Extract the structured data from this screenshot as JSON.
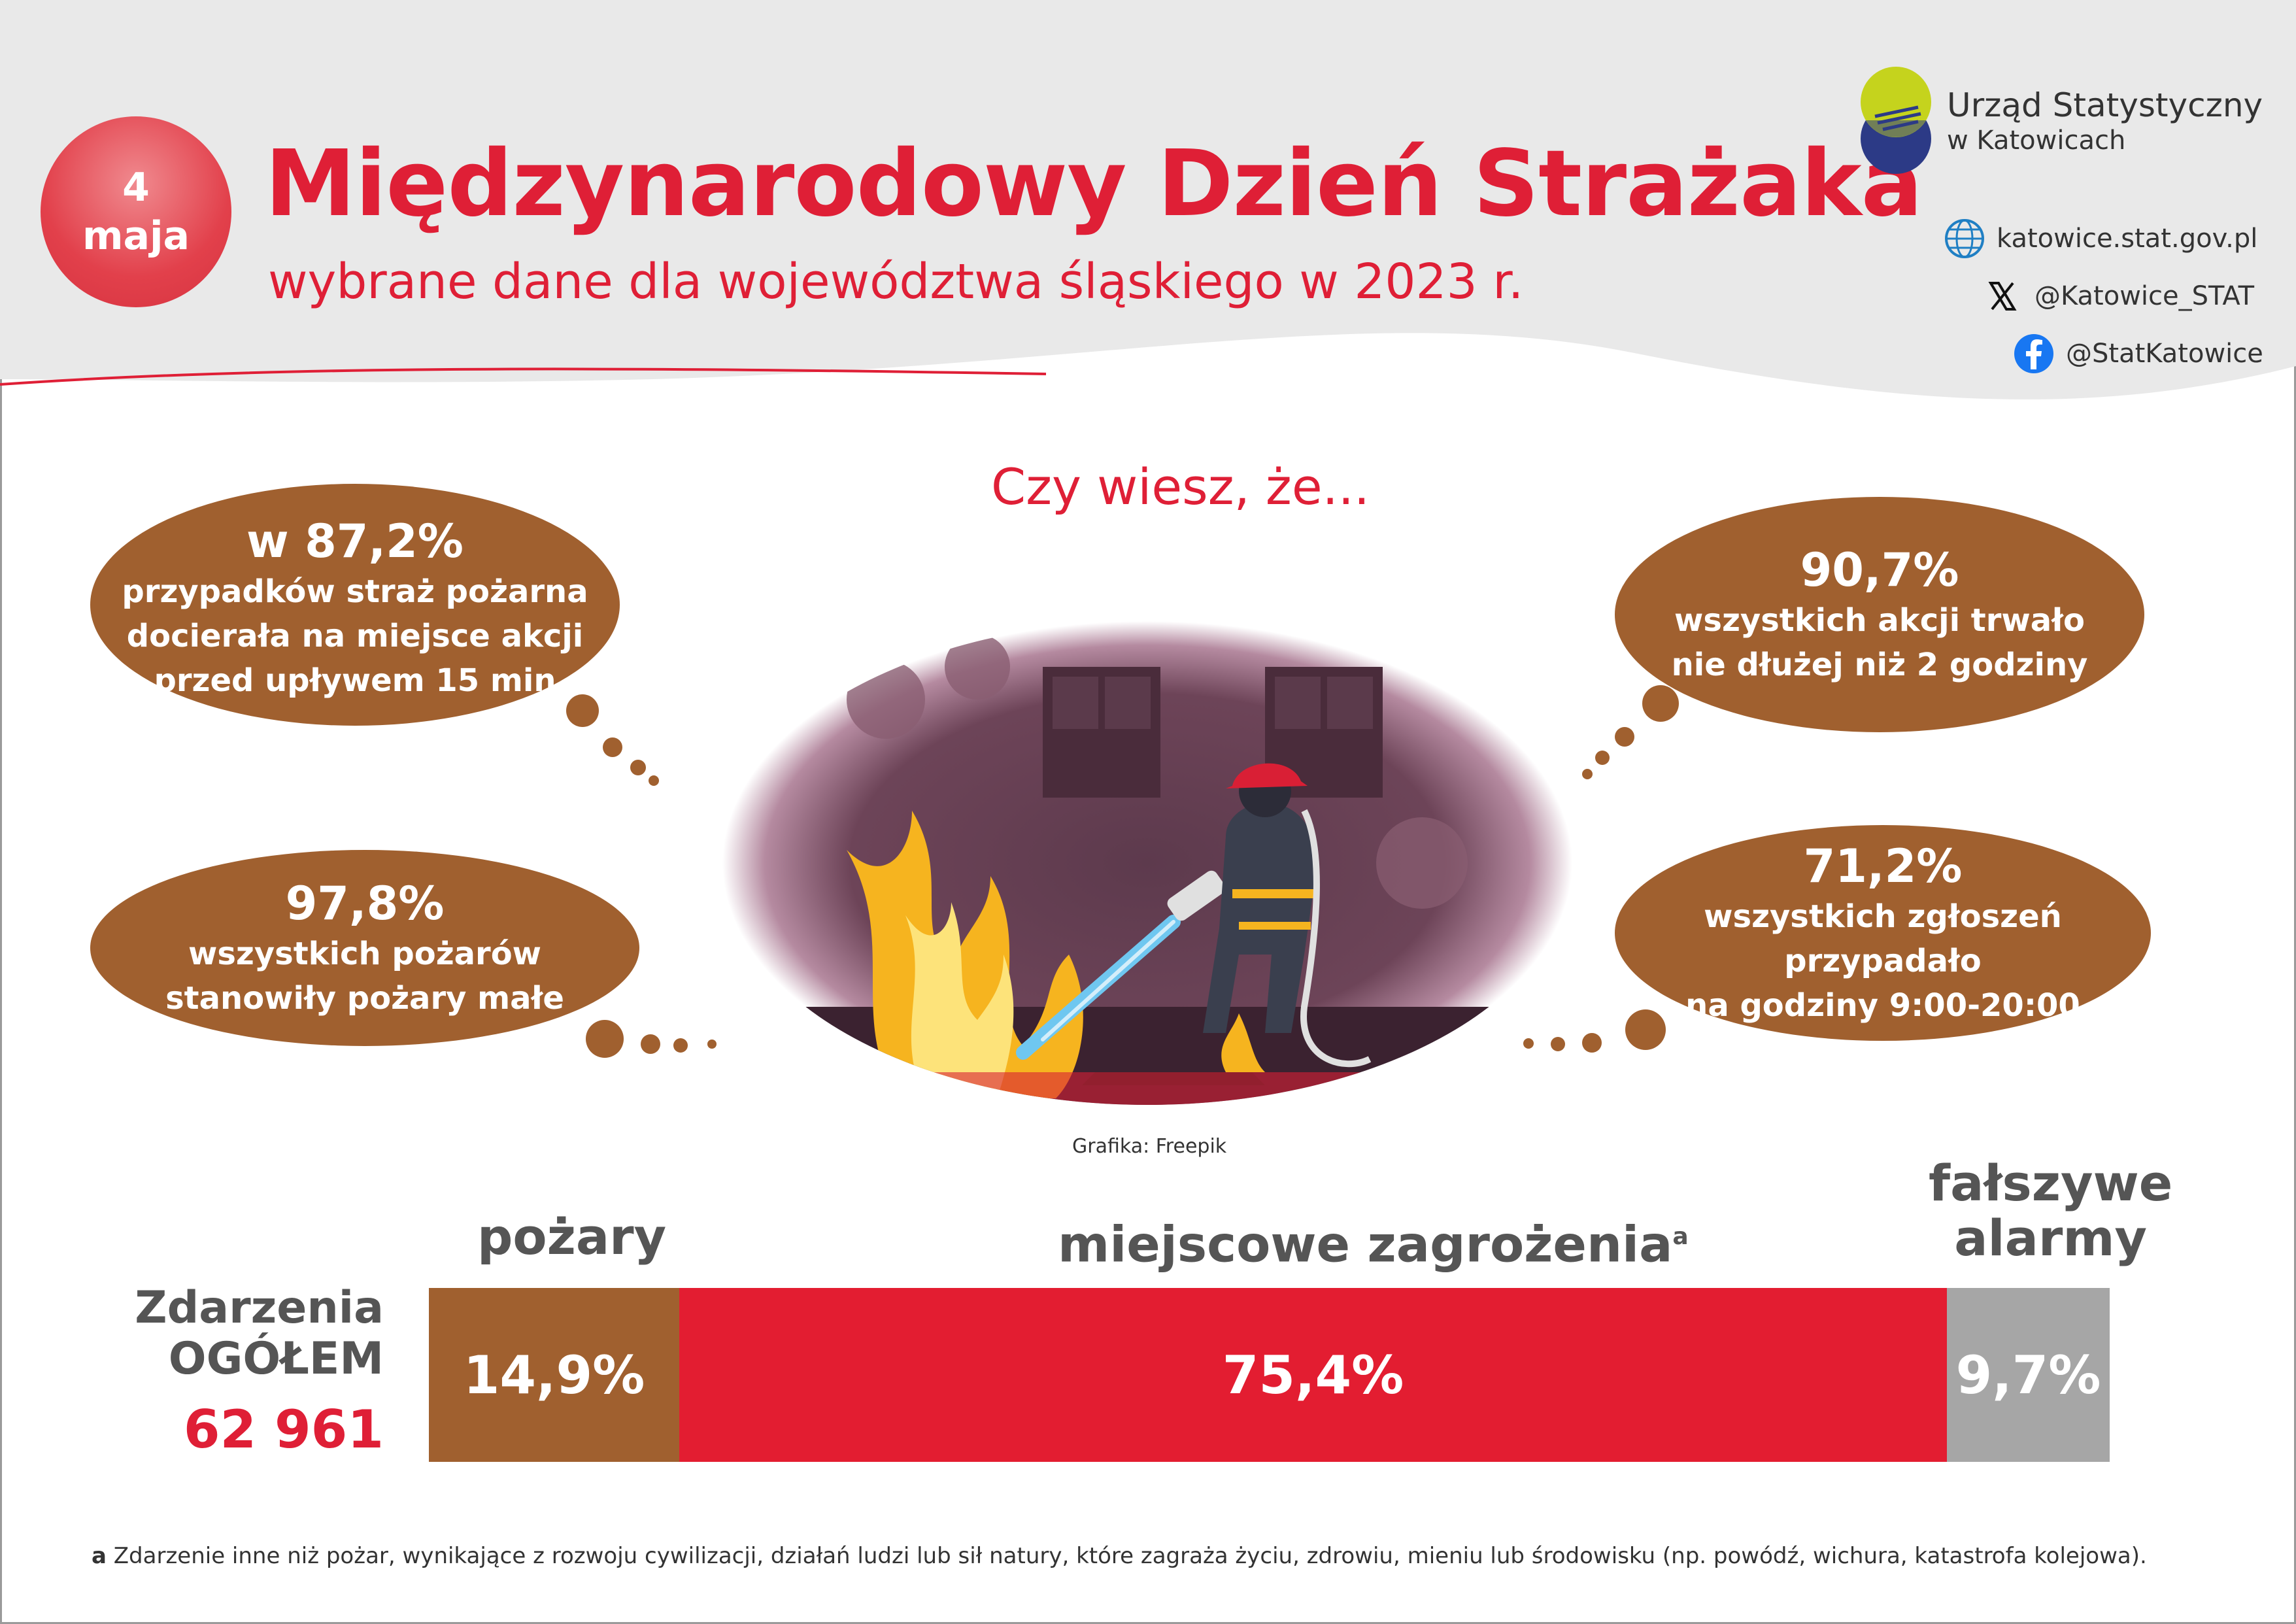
{
  "header": {
    "badge_line1": "4",
    "badge_line2": "maja",
    "title": "Międzynarodowy Dzień Strażaka",
    "subtitle": "wybrane dane dla województwa śląskiego w 2023 r."
  },
  "logo": {
    "line1": "Urząd Statystyczny",
    "line2": "w Katowicach"
  },
  "social": {
    "website": "katowice.stat.gov.pl",
    "x": "@Katowice_STAT",
    "facebook": "@StatKatowice"
  },
  "intro": "Czy wiesz, że...",
  "facts": [
    {
      "big": "w 87,2%",
      "lines": [
        "przypadków straż pożarna",
        "docierała na miejsce akcji",
        "przed upływem 15 min"
      ]
    },
    {
      "big": "97,8%",
      "lines": [
        "wszystkich pożarów",
        "stanowiły pożary małe"
      ]
    },
    {
      "big": "90,7%",
      "lines": [
        "wszystkich akcji trwało",
        "nie dłużej niż 2 godziny"
      ]
    },
    {
      "big": "71,2%",
      "lines": [
        "wszystkich zgłoszeń przypadało",
        "na godziny 9:00-20:00"
      ]
    }
  ],
  "illustration_credit": "Grafika: Freepik",
  "events": {
    "label_line1": "Zdarzenia",
    "label_line2": "OGÓŁEM",
    "total": "62 961",
    "categories": [
      {
        "name": "pożary",
        "share": 14.9,
        "label": "14,9%",
        "color": "#a0602f"
      },
      {
        "name": "miejscowe zagrożenia",
        "sup": "a",
        "share": 75.4,
        "label": "75,4%",
        "color": "#e31d31"
      },
      {
        "name_line1": "fałszywe",
        "name_line2": "alarmy",
        "share": 9.7,
        "label": "9,7%",
        "color": "#a6a6a6"
      }
    ]
  },
  "footnote": {
    "marker": "a",
    "text": " Zdarzenie inne niż pożar, wynikające z rozwoju cywilizacji, działań ludzi lub sił natury, które zagraża życiu, zdrowiu, mieniu lub środowisku (np. powódź, wichura, katastrofa kolejowa)."
  },
  "colors": {
    "accent_red": "#df1f36",
    "brown": "#a0602f",
    "grey": "#a6a6a6"
  }
}
